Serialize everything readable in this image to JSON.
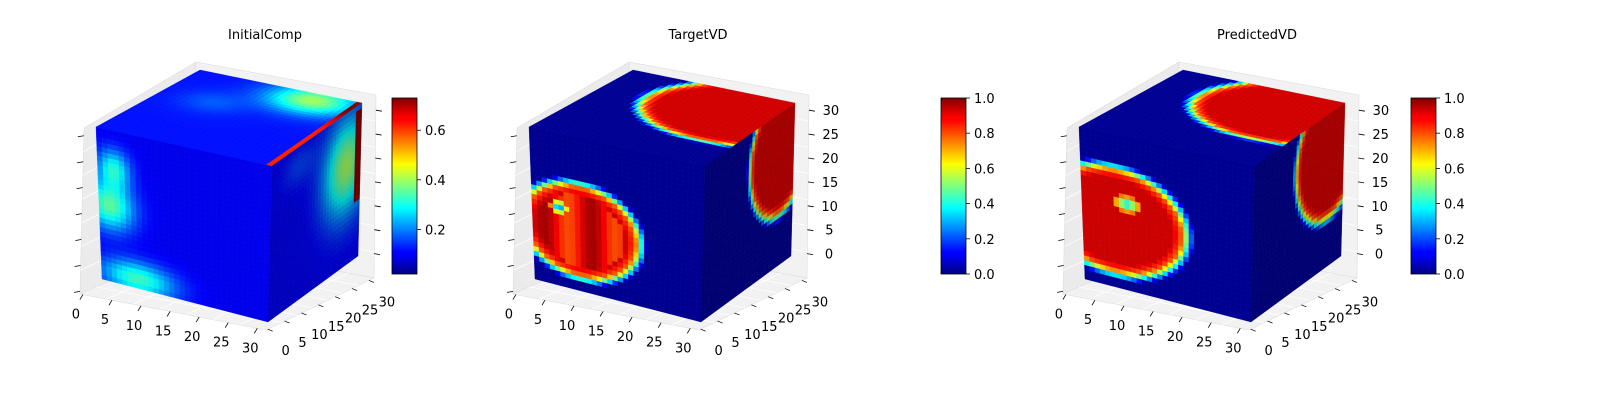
{
  "chart_data": [
    {
      "type": "heatmap",
      "subtype": "3d-voxel",
      "title": "InitialComp",
      "x_ticks": [
        "0",
        "5",
        "10",
        "15",
        "20",
        "25",
        "30"
      ],
      "y_ticks": [
        "0",
        "5",
        "10",
        "15",
        "20",
        "25",
        "30"
      ],
      "z_ticks": [],
      "colormap": "jet",
      "colorbar": {
        "min": 0.02,
        "max": 0.73,
        "ticks": [
          "0.2",
          "0.4",
          "0.6"
        ],
        "tick_values": [
          0.2,
          0.4,
          0.6
        ]
      },
      "faces": {
        "left": {
          "description_values": "field mostly 0.1; blob 0.35 at z 10-22, y 0-6; blob 0.33 near bottom y 3-12"
        },
        "top": {
          "peak": 0.4
        },
        "right": {
          "peak": 0.45
        }
      }
    },
    {
      "type": "heatmap",
      "subtype": "3d-voxel",
      "title": "TargetVD",
      "x_ticks": [
        "0",
        "5",
        "10",
        "15",
        "20",
        "25",
        "30"
      ],
      "y_ticks": [
        "0",
        "5",
        "10",
        "15",
        "20",
        "25",
        "30"
      ],
      "z_ticks": [
        "0",
        "5",
        "10",
        "15",
        "20",
        "25",
        "30"
      ],
      "colormap": "jet",
      "colorbar": {
        "min": 0.0,
        "max": 1.0,
        "ticks": [
          "0.0",
          "0.2",
          "0.4",
          "0.6",
          "0.8",
          "1.0"
        ],
        "tick_values": [
          0,
          0.2,
          0.4,
          0.6,
          0.8,
          1.0
        ]
      }
    },
    {
      "type": "heatmap",
      "subtype": "3d-voxel",
      "title": "PredictedVD",
      "x_ticks": [
        "0",
        "5",
        "10",
        "15",
        "20",
        "25",
        "30"
      ],
      "y_ticks": [
        "0",
        "5",
        "10",
        "15",
        "20",
        "25",
        "30"
      ],
      "z_ticks": [
        "0",
        "5",
        "10",
        "15",
        "20",
        "25",
        "30"
      ],
      "colormap": "jet",
      "colorbar": {
        "min": 0.0,
        "max": 1.0,
        "ticks": [
          "0.0",
          "0.2",
          "0.4",
          "0.6",
          "0.8",
          "1.0"
        ],
        "tick_values": [
          0,
          0.2,
          0.4,
          0.6,
          0.8,
          1.0
        ]
      }
    }
  ]
}
